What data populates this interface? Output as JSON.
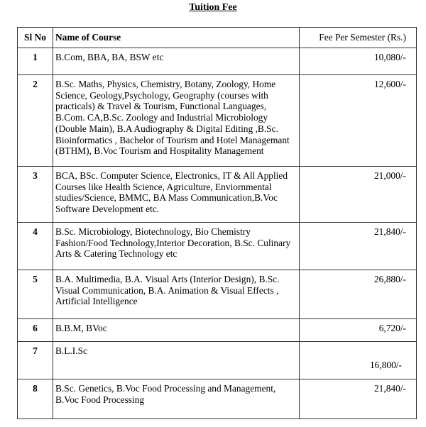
{
  "title": "Tuition Fee",
  "headers": {
    "sl": "Sl No",
    "course": "Name of Course",
    "fee": "Fee Per Semester (Rs.)"
  },
  "rows": [
    {
      "sl": "1",
      "course": "B.Com, BBA, BA, BSW etc",
      "fee": "10,080/-"
    },
    {
      "sl": "2",
      "course": "B.Sc. Maths, Physics, Chemistry, Botany, Zoology, Home Science, Geology,Psychology, Geography (courses with practicals) & Travel & Tourism, Functional Languages, B.Com. CA,B.Sc. Zoology and Industrial Microbiology (Double Main), B.A Audiography & Digital Editing ,B.Sc. Bioinformatics , Bachelor of Tourism and Hotel Managemant (BTHM), B.Voc Tourism and Hospitality Management",
      "fee": "12,600/-"
    },
    {
      "sl": "3",
      "course": "BCA, BSc. Computer Science, Electronics, IT & All Applied Courses like Health Science, Agriculture, Enviornmental studies/Science, BMMC, BA Mass Communication,B.Voc Software Development etc.",
      "fee": "21,000/-"
    },
    {
      "sl": "4",
      "course": "B.Sc. Microbiology, Biotechnology, Bio Chemistry Fashion/Food Technology,Interior Decoration, B.Sc. Culinary Arts & Catering Technology etc",
      "fee": "21,840/-"
    },
    {
      "sl": "5",
      "course": "B.A. Multimedia, B.A. Visual Arts (Interior Design), B.Sc. Visual Communication, B.A. Animation & Visual Effects , Artificial Intelligence",
      "fee": "26,880/-"
    },
    {
      "sl": "6",
      "course": "B.B.M, BVoc",
      "fee": "6,720/-"
    },
    {
      "sl": "7",
      "course": "B.L.I.Sc",
      "fee": "16,800/-"
    },
    {
      "sl": "8",
      "course": "B.Sc. Genetics, B.Voc Food Processing and Management, B.Voc Food Processing",
      "fee": "21,840/-"
    }
  ]
}
